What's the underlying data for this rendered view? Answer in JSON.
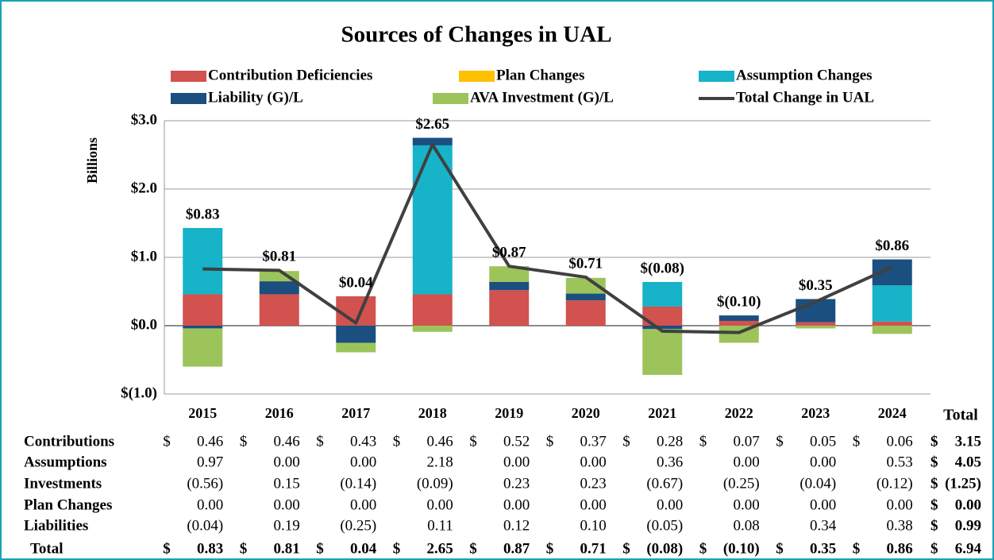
{
  "chart_data": {
    "type": "bar",
    "stacked": true,
    "title": "Sources of Changes in UAL",
    "y_label": "Billions",
    "categories": [
      "2015",
      "2016",
      "2017",
      "2018",
      "2019",
      "2020",
      "2021",
      "2022",
      "2023",
      "2024"
    ],
    "ylim": [
      -1,
      3
    ],
    "yticks": [
      {
        "value": -1,
        "label": "$(1.0)"
      },
      {
        "value": 0,
        "label": "$0.0"
      },
      {
        "value": 1,
        "label": "$1.0"
      },
      {
        "value": 2,
        "label": "$2.0"
      },
      {
        "value": 3,
        "label": "$3.0"
      }
    ],
    "grid": true,
    "series": [
      {
        "name": "Contribution Deficiencies",
        "color": "#d1524e",
        "values": [
          0.46,
          0.46,
          0.43,
          0.46,
          0.52,
          0.37,
          0.28,
          0.07,
          0.05,
          0.06
        ]
      },
      {
        "name": "Plan Changes",
        "color": "#ffc000",
        "values": [
          0,
          0,
          0,
          0,
          0,
          0,
          0,
          0,
          0,
          0
        ]
      },
      {
        "name": "Assumption Changes",
        "color": "#17b3c8",
        "values": [
          0.97,
          0,
          0,
          2.18,
          0,
          0,
          0.36,
          0,
          0,
          0.53
        ]
      },
      {
        "name": "Liability (G)/L",
        "color": "#1a4f80",
        "values": [
          -0.04,
          0.19,
          -0.25,
          0.11,
          0.12,
          0.1,
          -0.05,
          0.08,
          0.34,
          0.38
        ]
      },
      {
        "name": "AVA Investment (G)/L",
        "color": "#9cc45a",
        "values": [
          -0.56,
          0.15,
          -0.14,
          -0.09,
          0.23,
          0.23,
          -0.67,
          -0.25,
          -0.04,
          -0.12
        ]
      },
      {
        "name": "Total Change in UAL",
        "type": "line",
        "color": "#404040",
        "values": [
          0.83,
          0.81,
          0.04,
          2.65,
          0.87,
          0.71,
          -0.08,
          -0.1,
          0.35,
          0.86
        ],
        "value_labels": [
          "$0.83",
          "$0.81",
          "$0.04",
          "$2.65",
          "$0.87",
          "$0.71",
          "$(0.08)",
          "$(0.10)",
          "$0.35",
          "$0.86"
        ]
      }
    ]
  },
  "table": {
    "total_header": "Total",
    "total_prefix": "$",
    "rows": [
      {
        "label": "Contributions",
        "prefix": "$",
        "cells": [
          "0.46",
          "0.46",
          "0.43",
          "0.46",
          "0.52",
          "0.37",
          "0.28",
          "0.07",
          "0.05",
          "0.06"
        ],
        "total": "3.15"
      },
      {
        "label": "Assumptions",
        "cells": [
          "0.97",
          "0.00",
          "0.00",
          "2.18",
          "0.00",
          "0.00",
          "0.36",
          "0.00",
          "0.00",
          "0.53"
        ],
        "total": "4.05"
      },
      {
        "label": "Investments",
        "cells": [
          "(0.56)",
          "0.15",
          "(0.14)",
          "(0.09)",
          "0.23",
          "0.23",
          "(0.67)",
          "(0.25)",
          "(0.04)",
          "(0.12)"
        ],
        "total": "(1.25)"
      },
      {
        "label": "Plan Changes",
        "cells": [
          "0.00",
          "0.00",
          "0.00",
          "0.00",
          "0.00",
          "0.00",
          "0.00",
          "0.00",
          "0.00",
          "0.00"
        ],
        "total": "0.00"
      },
      {
        "label": "Liabilities",
        "cells": [
          "(0.04)",
          "0.19",
          "(0.25)",
          "0.11",
          "0.12",
          "0.10",
          "(0.05)",
          "0.08",
          "0.34",
          "0.38"
        ],
        "total": "0.99"
      },
      {
        "label": "Total",
        "prefix": "$",
        "bold": true,
        "cells": [
          "0.83",
          "0.81",
          "0.04",
          "2.65",
          "0.87",
          "0.71",
          "(0.08)",
          "(0.10)",
          "0.35",
          "0.86"
        ],
        "total": "6.94"
      }
    ]
  }
}
